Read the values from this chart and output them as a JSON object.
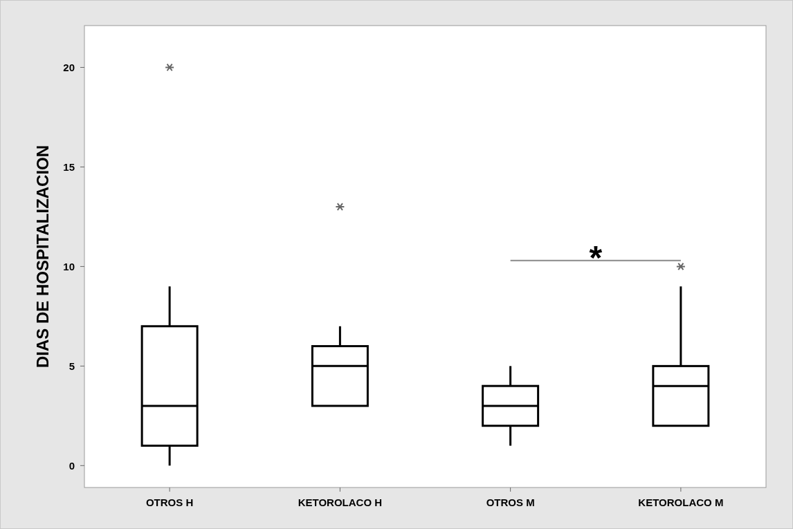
{
  "chart_data": {
    "type": "box",
    "ylabel": "DIAS DE HOSPITALIZACION",
    "categories": [
      "OTROS H",
      "KETOROLACO H",
      "OTROS M",
      "KETOROLACO M"
    ],
    "boxes": [
      {
        "low": 0,
        "q1": 1,
        "median": 3,
        "q3": 7,
        "high": 9,
        "outliers": [
          20
        ]
      },
      {
        "low": 3,
        "q1": 3,
        "median": 5,
        "q3": 6,
        "high": 7,
        "outliers": [
          13
        ]
      },
      {
        "low": 1,
        "q1": 2,
        "median": 3,
        "q3": 4,
        "high": 5
      },
      {
        "low": 2,
        "q1": 2,
        "median": 4,
        "q3": 5,
        "high": 9,
        "outliers": [
          10
        ]
      }
    ],
    "color": "#000000",
    "ylim": [
      -1.1,
      22.1
    ],
    "yticks": [
      0,
      5,
      10,
      15,
      20
    ],
    "grid": false,
    "marker": "star",
    "annotations": [
      "*"
    ]
  }
}
